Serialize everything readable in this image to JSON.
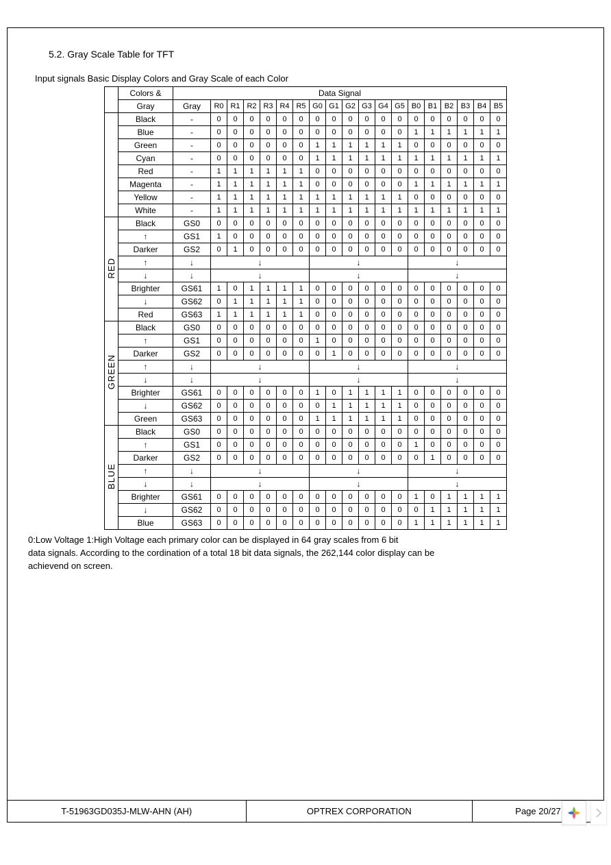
{
  "section_title": "5.2. Gray Scale Table for TFT",
  "subtitle": "Input signals Basic Display Colors and Gray Scale of each Color",
  "header": {
    "h1": "Colors &",
    "h2": "Gray",
    "h3": "Gray",
    "data_signal": "Data Signal",
    "bits": [
      "R0",
      "R1",
      "R2",
      "R3",
      "R4",
      "R5",
      "G0",
      "G1",
      "G2",
      "G3",
      "G4",
      "G5",
      "B0",
      "B1",
      "B2",
      "B3",
      "B4",
      "B5"
    ]
  },
  "basic_colors": [
    {
      "name": "Black",
      "gray": "-",
      "bits": [
        0,
        0,
        0,
        0,
        0,
        0,
        0,
        0,
        0,
        0,
        0,
        0,
        0,
        0,
        0,
        0,
        0,
        0
      ]
    },
    {
      "name": "Blue",
      "gray": "-",
      "bits": [
        0,
        0,
        0,
        0,
        0,
        0,
        0,
        0,
        0,
        0,
        0,
        0,
        1,
        1,
        1,
        1,
        1,
        1
      ]
    },
    {
      "name": "Green",
      "gray": "-",
      "bits": [
        0,
        0,
        0,
        0,
        0,
        0,
        1,
        1,
        1,
        1,
        1,
        1,
        0,
        0,
        0,
        0,
        0,
        0
      ]
    },
    {
      "name": "Cyan",
      "gray": "-",
      "bits": [
        0,
        0,
        0,
        0,
        0,
        0,
        1,
        1,
        1,
        1,
        1,
        1,
        1,
        1,
        1,
        1,
        1,
        1
      ]
    },
    {
      "name": "Red",
      "gray": "-",
      "bits": [
        1,
        1,
        1,
        1,
        1,
        1,
        0,
        0,
        0,
        0,
        0,
        0,
        0,
        0,
        0,
        0,
        0,
        0
      ]
    },
    {
      "name": "Magenta",
      "gray": "-",
      "bits": [
        1,
        1,
        1,
        1,
        1,
        1,
        0,
        0,
        0,
        0,
        0,
        0,
        1,
        1,
        1,
        1,
        1,
        1
      ]
    },
    {
      "name": "Yellow",
      "gray": "-",
      "bits": [
        1,
        1,
        1,
        1,
        1,
        1,
        1,
        1,
        1,
        1,
        1,
        1,
        0,
        0,
        0,
        0,
        0,
        0
      ]
    },
    {
      "name": "White",
      "gray": "-",
      "bits": [
        1,
        1,
        1,
        1,
        1,
        1,
        1,
        1,
        1,
        1,
        1,
        1,
        1,
        1,
        1,
        1,
        1,
        1
      ]
    }
  ],
  "groups": [
    {
      "label": "RED",
      "rows": [
        {
          "name": "Black",
          "gray": "GS0",
          "bits": [
            0,
            0,
            0,
            0,
            0,
            0,
            0,
            0,
            0,
            0,
            0,
            0,
            0,
            0,
            0,
            0,
            0,
            0
          ]
        },
        {
          "name": "↑",
          "gray": "GS1",
          "bits": [
            1,
            0,
            0,
            0,
            0,
            0,
            0,
            0,
            0,
            0,
            0,
            0,
            0,
            0,
            0,
            0,
            0,
            0
          ]
        },
        {
          "name": "Darker",
          "gray": "GS2",
          "bits": [
            0,
            1,
            0,
            0,
            0,
            0,
            0,
            0,
            0,
            0,
            0,
            0,
            0,
            0,
            0,
            0,
            0,
            0
          ]
        },
        {
          "name": "↑",
          "gray": "↓",
          "arrow": true
        },
        {
          "name": "↓",
          "gray": "↓",
          "arrow": true
        },
        {
          "name": "Brighter",
          "gray": "GS61",
          "bits": [
            1,
            0,
            1,
            1,
            1,
            1,
            0,
            0,
            0,
            0,
            0,
            0,
            0,
            0,
            0,
            0,
            0,
            0
          ]
        },
        {
          "name": "↓",
          "gray": "GS62",
          "bits": [
            0,
            1,
            1,
            1,
            1,
            1,
            0,
            0,
            0,
            0,
            0,
            0,
            0,
            0,
            0,
            0,
            0,
            0
          ]
        },
        {
          "name": "Red",
          "gray": "GS63",
          "bits": [
            1,
            1,
            1,
            1,
            1,
            1,
            0,
            0,
            0,
            0,
            0,
            0,
            0,
            0,
            0,
            0,
            0,
            0
          ]
        }
      ]
    },
    {
      "label": "GREEN",
      "rows": [
        {
          "name": "Black",
          "gray": "GS0",
          "bits": [
            0,
            0,
            0,
            0,
            0,
            0,
            0,
            0,
            0,
            0,
            0,
            0,
            0,
            0,
            0,
            0,
            0,
            0
          ]
        },
        {
          "name": "↑",
          "gray": "GS1",
          "bits": [
            0,
            0,
            0,
            0,
            0,
            0,
            1,
            0,
            0,
            0,
            0,
            0,
            0,
            0,
            0,
            0,
            0,
            0
          ]
        },
        {
          "name": "Darker",
          "gray": "GS2",
          "bits": [
            0,
            0,
            0,
            0,
            0,
            0,
            0,
            1,
            0,
            0,
            0,
            0,
            0,
            0,
            0,
            0,
            0,
            0
          ]
        },
        {
          "name": "↑",
          "gray": "↓",
          "arrow": true
        },
        {
          "name": "↓",
          "gray": "↓",
          "arrow": true
        },
        {
          "name": "Brighter",
          "gray": "GS61",
          "bits": [
            0,
            0,
            0,
            0,
            0,
            0,
            1,
            0,
            1,
            1,
            1,
            1,
            0,
            0,
            0,
            0,
            0,
            0
          ]
        },
        {
          "name": "↓",
          "gray": "GS62",
          "bits": [
            0,
            0,
            0,
            0,
            0,
            0,
            0,
            1,
            1,
            1,
            1,
            1,
            0,
            0,
            0,
            0,
            0,
            0
          ]
        },
        {
          "name": "Green",
          "gray": "GS63",
          "bits": [
            0,
            0,
            0,
            0,
            0,
            0,
            1,
            1,
            1,
            1,
            1,
            1,
            0,
            0,
            0,
            0,
            0,
            0
          ]
        }
      ]
    },
    {
      "label": "BLUE",
      "rows": [
        {
          "name": "Black",
          "gray": "GS0",
          "bits": [
            0,
            0,
            0,
            0,
            0,
            0,
            0,
            0,
            0,
            0,
            0,
            0,
            0,
            0,
            0,
            0,
            0,
            0
          ]
        },
        {
          "name": "↑",
          "gray": "GS1",
          "bits": [
            0,
            0,
            0,
            0,
            0,
            0,
            0,
            0,
            0,
            0,
            0,
            0,
            1,
            0,
            0,
            0,
            0,
            0
          ]
        },
        {
          "name": "Darker",
          "gray": "GS2",
          "bits": [
            0,
            0,
            0,
            0,
            0,
            0,
            0,
            0,
            0,
            0,
            0,
            0,
            0,
            1,
            0,
            0,
            0,
            0
          ]
        },
        {
          "name": "↑",
          "gray": "↓",
          "arrow": true
        },
        {
          "name": "↓",
          "gray": "↓",
          "arrow": true
        },
        {
          "name": "Brighter",
          "gray": "GS61",
          "bits": [
            0,
            0,
            0,
            0,
            0,
            0,
            0,
            0,
            0,
            0,
            0,
            0,
            1,
            0,
            1,
            1,
            1,
            1
          ]
        },
        {
          "name": "↓",
          "gray": "GS62",
          "bits": [
            0,
            0,
            0,
            0,
            0,
            0,
            0,
            0,
            0,
            0,
            0,
            0,
            0,
            1,
            1,
            1,
            1,
            1
          ]
        },
        {
          "name": "Blue",
          "gray": "GS63",
          "bits": [
            0,
            0,
            0,
            0,
            0,
            0,
            0,
            0,
            0,
            0,
            0,
            0,
            1,
            1,
            1,
            1,
            1,
            1
          ]
        }
      ]
    }
  ],
  "arrow_glyph": "↓",
  "note1": "0:Low Voltage    1:High Voltage each primary color can be displayed in 64 gray scales from 6 bit",
  "note2": "data signals. According to the cordination of a total 18 bit data signals, the 262,144 color display can be",
  "note3": "achievend on screen.",
  "footer": {
    "left": "T-51963GD035J-MLW-AHN (AH)",
    "center": "OPTREX CORPORATION",
    "right": "Page 20/27"
  },
  "logo_colors": [
    "#7cc242",
    "#3b76c4",
    "#f05a8c",
    "#f7a81b"
  ]
}
